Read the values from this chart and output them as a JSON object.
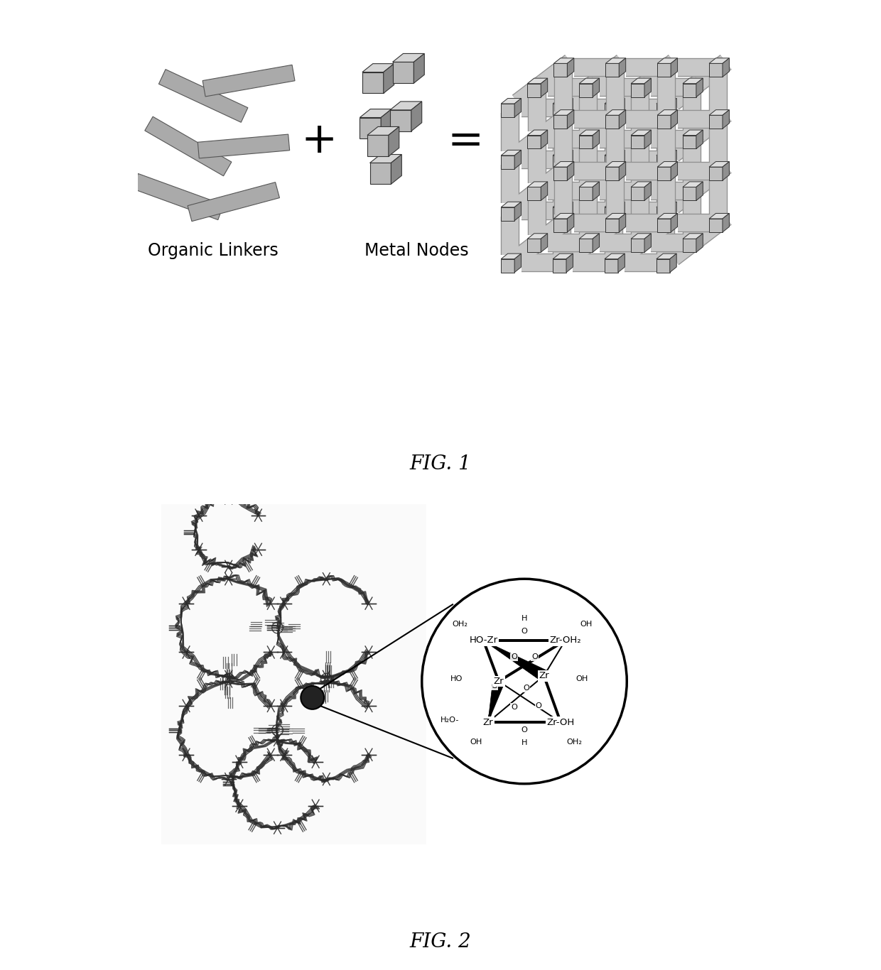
{
  "fig1_label": "FIG. 1",
  "fig2_label": "FIG. 2",
  "organic_linkers_label": "Organic Linkers",
  "metal_nodes_label": "Metal Nodes",
  "background_color": "#ffffff",
  "linker_color": "#aaaaaa",
  "cube_front": "#b8b8b8",
  "cube_top": "#d5d5d5",
  "cube_side": "#888888",
  "bar_color": "#cccccc",
  "bar_edge": "#999999",
  "fig1_caption_fontsize": 20,
  "fig2_caption_fontsize": 20,
  "label_fontsize": 17,
  "plus_fontsize": 44,
  "equals_fontsize": 44
}
